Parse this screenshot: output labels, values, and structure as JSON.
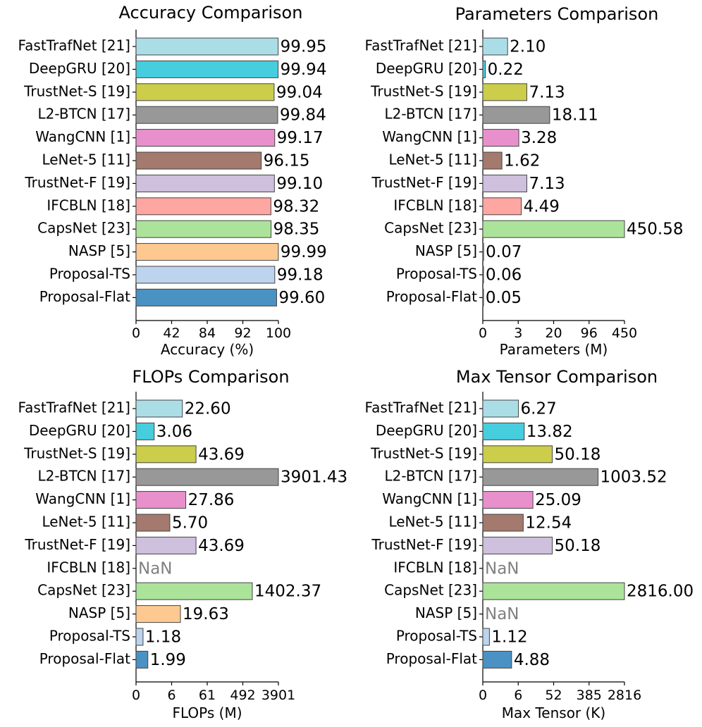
{
  "colors": [
    "#abdde7",
    "#46cdde",
    "#cbcd4b",
    "#989898",
    "#e890cc",
    "#a37a6d",
    "#cfc0de",
    "#fea6a2",
    "#abe39a",
    "#fec990",
    "#bdd3ee",
    "#4a91c4"
  ],
  "nan_label": "NaN",
  "chart_data": [
    {
      "type": "bar",
      "orientation": "horizontal",
      "title": "Accuracy Comparison",
      "xlabel": "Accuracy (%)",
      "categories": [
        "FastTrafNet [21]",
        "DeepGRU [20]",
        "TrustNet-S [19]",
        "L2-BTCN [17]",
        "WangCNN [1]",
        "LeNet-5 [11]",
        "TrustNet-F [19]",
        "IFCBLN [18]",
        "CapsNet [23]",
        "NASP [5]",
        "Proposal-TS",
        "Proposal-Flat"
      ],
      "values": [
        99.95,
        99.94,
        99.04,
        99.84,
        99.17,
        96.15,
        99.1,
        98.32,
        98.35,
        99.99,
        99.18,
        99.6
      ],
      "labels": [
        "99.95",
        "99.94",
        "99.04",
        "99.84",
        "99.17",
        "96.15",
        "99.10",
        "98.32",
        "98.35",
        "99.99",
        "99.18",
        "99.60"
      ],
      "xticks": [
        0,
        42,
        84,
        92,
        100
      ],
      "xticklabels": [
        "0",
        "42",
        "84",
        "92",
        "100"
      ],
      "xlim": [
        0,
        100
      ]
    },
    {
      "type": "bar",
      "orientation": "horizontal",
      "title": "Parameters Comparison",
      "xlabel": "Parameters (M)",
      "categories": [
        "FastTrafNet [21]",
        "DeepGRU [20]",
        "TrustNet-S [19]",
        "L2-BTCN [17]",
        "WangCNN [1]",
        "LeNet-5 [11]",
        "TrustNet-F [19]",
        "IFCBLN [18]",
        "CapsNet [23]",
        "NASP [5]",
        "Proposal-TS",
        "Proposal-Flat"
      ],
      "values": [
        2.1,
        0.22,
        7.13,
        18.11,
        3.28,
        1.62,
        7.13,
        4.49,
        450.58,
        0.07,
        0.06,
        0.05
      ],
      "labels": [
        "2.10",
        "0.22",
        "7.13",
        "18.11",
        "3.28",
        "1.62",
        "7.13",
        "4.49",
        "450.58",
        "0.07",
        "0.06",
        "0.05"
      ],
      "xticks": [
        0,
        3,
        20,
        96,
        450
      ],
      "xticklabels": [
        "0",
        "3",
        "20",
        "96",
        "450"
      ],
      "xlim": [
        0,
        450
      ]
    },
    {
      "type": "bar",
      "orientation": "horizontal",
      "title": "FLOPs Comparison",
      "xlabel": "FLOPs (M)",
      "categories": [
        "FastTrafNet [21]",
        "DeepGRU [20]",
        "TrustNet-S [19]",
        "L2-BTCN [17]",
        "WangCNN [1]",
        "LeNet-5 [11]",
        "TrustNet-F [19]",
        "IFCBLN [18]",
        "CapsNet [23]",
        "NASP [5]",
        "Proposal-TS",
        "Proposal-Flat"
      ],
      "values": [
        22.6,
        3.06,
        43.69,
        3901.43,
        27.86,
        5.7,
        43.69,
        null,
        1402.37,
        19.63,
        1.18,
        1.99
      ],
      "labels": [
        "22.60",
        "3.06",
        "43.69",
        "3901.43",
        "27.86",
        "5.70",
        "43.69",
        "NaN",
        "1402.37",
        "19.63",
        "1.18",
        "1.99"
      ],
      "xticks": [
        0,
        6,
        61,
        492,
        3901
      ],
      "xticklabels": [
        "0",
        "6",
        "61",
        "492",
        "3901"
      ],
      "xlim": [
        0,
        3901
      ]
    },
    {
      "type": "bar",
      "orientation": "horizontal",
      "title": "Max Tensor Comparison",
      "xlabel": "Max Tensor (K)",
      "categories": [
        "FastTrafNet [21]",
        "DeepGRU [20]",
        "TrustNet-S [19]",
        "L2-BTCN [17]",
        "WangCNN [1]",
        "LeNet-5 [11]",
        "TrustNet-F [19]",
        "IFCBLN [18]",
        "CapsNet [23]",
        "NASP [5]",
        "Proposal-TS",
        "Proposal-Flat"
      ],
      "values": [
        6.27,
        13.82,
        50.18,
        1003.52,
        25.09,
        12.54,
        50.18,
        null,
        2816.0,
        null,
        1.12,
        4.88
      ],
      "labels": [
        "6.27",
        "13.82",
        "50.18",
        "1003.52",
        "25.09",
        "12.54",
        "50.18",
        "NaN",
        "2816.00",
        "NaN",
        "1.12",
        "4.88"
      ],
      "xticks": [
        0,
        6,
        52,
        385,
        2816
      ],
      "xticklabels": [
        "0",
        "6",
        "52",
        "385",
        "2816"
      ],
      "xlim": [
        0,
        2816
      ]
    }
  ]
}
